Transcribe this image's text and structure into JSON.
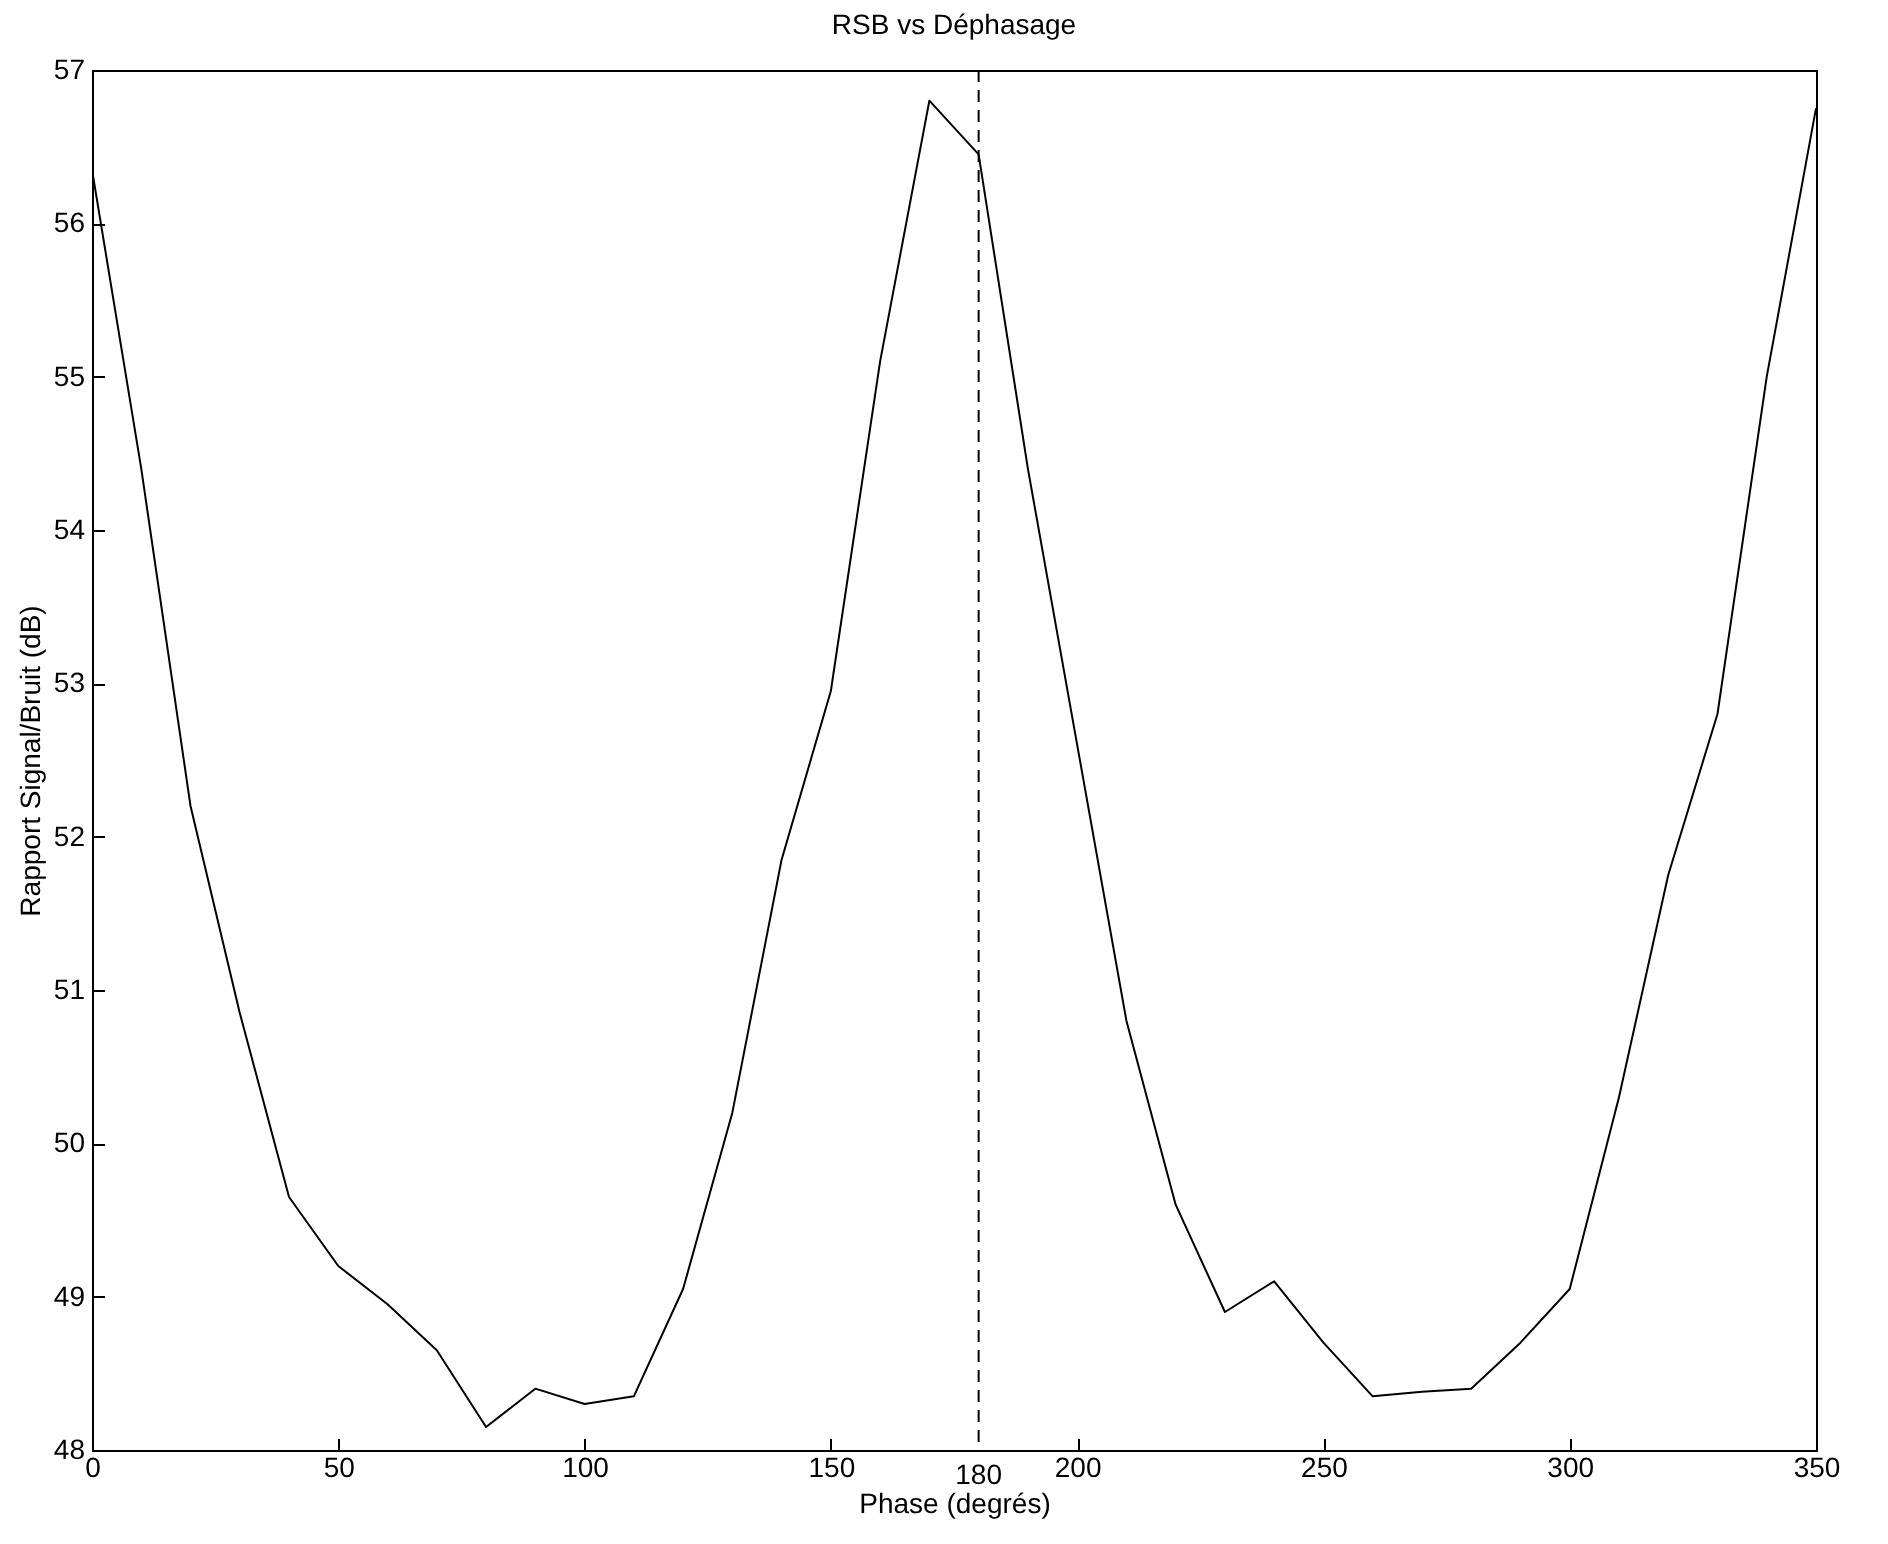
{
  "chart_data": {
    "type": "line",
    "title": "RSB vs Déphasage",
    "xlabel": "Phase (degrés)",
    "ylabel": "Rapport Signal/Bruit (dB)",
    "x": [
      0,
      10,
      20,
      30,
      40,
      50,
      60,
      70,
      80,
      90,
      100,
      110,
      120,
      130,
      140,
      150,
      160,
      170,
      180,
      190,
      200,
      210,
      220,
      230,
      240,
      250,
      260,
      270,
      280,
      290,
      300,
      310,
      320,
      330,
      340,
      350
    ],
    "series": [
      {
        "color": "#000000",
        "values": [
          56.35,
          54.4,
          52.2,
          50.85,
          49.65,
          49.2,
          48.95,
          48.65,
          48.15,
          48.4,
          48.3,
          48.35,
          49.05,
          50.2,
          51.85,
          52.95,
          55.1,
          56.8,
          56.45,
          54.4,
          52.6,
          50.8,
          49.6,
          48.9,
          49.1,
          48.7,
          48.35,
          48.38,
          48.4,
          48.7,
          49.05,
          50.3,
          51.75,
          52.8,
          55.0,
          56.75
        ]
      }
    ],
    "xlim": [
      0,
      350
    ],
    "xticks": [
      0,
      50,
      100,
      150,
      200,
      250,
      300,
      350
    ],
    "ylim": [
      48,
      57
    ],
    "yticks": [
      48,
      49,
      50,
      51,
      52,
      53,
      54,
      55,
      56,
      57
    ],
    "ref_lines": [
      {
        "axis": "x",
        "value": 180,
        "label": "180",
        "color": "#000000",
        "line_style": "dashed"
      }
    ],
    "grid": false,
    "marker": "none",
    "line_style": "solid"
  }
}
